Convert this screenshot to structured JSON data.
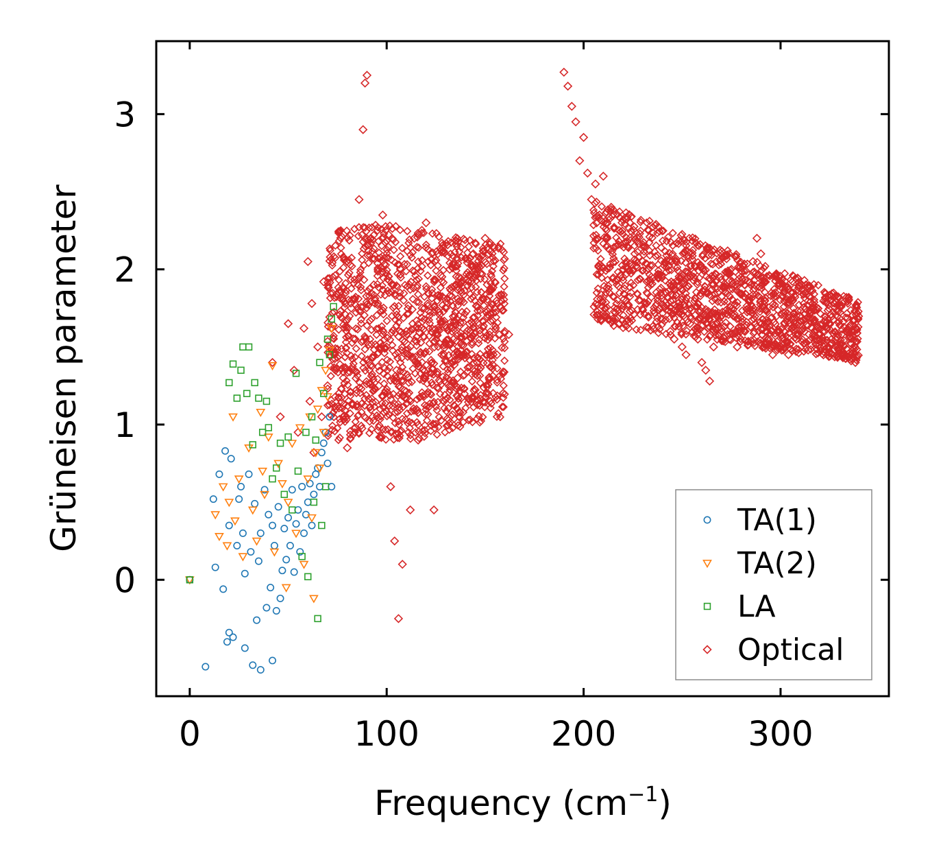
{
  "chart_data": {
    "type": "scatter",
    "title": "",
    "xlabel": "Frequency (cm",
    "xlabel_superscript": "−1",
    "xlabel_close": ")",
    "ylabel": "Grüneisen parameter",
    "xlim": [
      -17,
      355
    ],
    "ylim": [
      -0.75,
      3.47
    ],
    "x_ticks": [
      0,
      100,
      200,
      300
    ],
    "y_ticks": [
      0,
      1,
      2,
      3
    ],
    "x_tick_labels": [
      "0",
      "100",
      "200",
      "300"
    ],
    "y_tick_labels": [
      "0",
      "1",
      "2",
      "3"
    ],
    "grid": false,
    "legend_position": "lower-right",
    "series": [
      {
        "name": "TA(1)",
        "marker": "circle",
        "color": "#1f77b4",
        "x": [
          0,
          8,
          12,
          13,
          15,
          17,
          18,
          19,
          20,
          20,
          21,
          22,
          24,
          25,
          26,
          27,
          28,
          28,
          30,
          31,
          32,
          33,
          34,
          35,
          36,
          36,
          38,
          39,
          40,
          41,
          42,
          42,
          43,
          44,
          45,
          46,
          47,
          48,
          49,
          50,
          51,
          52,
          53,
          54,
          55,
          56,
          57,
          58,
          59,
          60,
          61,
          62,
          63,
          64,
          65,
          66,
          67,
          68,
          69,
          70,
          71,
          72
        ],
        "y": [
          0.0,
          -0.56,
          0.52,
          0.08,
          0.68,
          -0.06,
          0.83,
          -0.4,
          -0.34,
          0.35,
          0.78,
          -0.37,
          0.22,
          0.52,
          0.6,
          0.3,
          -0.44,
          0.04,
          0.68,
          0.18,
          -0.55,
          0.49,
          -0.26,
          0.12,
          -0.58,
          0.3,
          0.58,
          -0.18,
          0.42,
          -0.05,
          -0.52,
          0.35,
          0.22,
          -0.2,
          0.47,
          -0.12,
          0.06,
          0.33,
          0.13,
          0.4,
          0.22,
          0.58,
          0.05,
          0.36,
          0.45,
          0.18,
          0.6,
          0.3,
          0.42,
          0.5,
          0.62,
          0.35,
          0.55,
          0.68,
          0.72,
          0.6,
          0.82,
          0.88,
          0.95,
          0.75,
          1.05,
          0.6
        ]
      },
      {
        "name": "TA(2)",
        "marker": "triangle-down",
        "color": "#ff7f0e",
        "x": [
          0,
          13,
          15,
          17,
          19,
          20,
          22,
          23,
          25,
          27,
          30,
          32,
          34,
          36,
          37,
          38,
          40,
          42,
          43,
          45,
          47,
          49,
          50,
          52,
          54,
          56,
          58,
          60,
          61,
          62,
          63,
          64,
          65,
          66,
          67,
          68,
          69,
          70,
          71,
          72
        ],
        "y": [
          0.0,
          0.42,
          0.28,
          0.6,
          0.22,
          0.5,
          1.05,
          0.38,
          0.65,
          0.15,
          0.85,
          0.45,
          0.25,
          1.08,
          0.7,
          0.55,
          0.92,
          1.38,
          0.18,
          0.75,
          0.62,
          -0.05,
          0.5,
          0.88,
          0.3,
          0.98,
          0.1,
          0.65,
          1.05,
          0.4,
          -0.12,
          0.82,
          1.1,
          0.72,
          1.22,
          0.95,
          1.35,
          1.18,
          1.48,
          1.62
        ]
      },
      {
        "name": "LA",
        "marker": "square",
        "color": "#2ca02c",
        "x": [
          0,
          20,
          22,
          24,
          26,
          27,
          29,
          30,
          32,
          33,
          35,
          37,
          39,
          40,
          42,
          44,
          46,
          48,
          50,
          52,
          54,
          55,
          57,
          59,
          60,
          62,
          63,
          64,
          65,
          66,
          67,
          68,
          69,
          70,
          71,
          72,
          73
        ],
        "y": [
          0.0,
          1.27,
          1.39,
          1.17,
          1.35,
          1.5,
          1.2,
          1.5,
          0.87,
          1.27,
          1.17,
          0.95,
          1.15,
          0.98,
          0.65,
          0.72,
          0.88,
          0.55,
          0.92,
          0.45,
          1.33,
          0.7,
          0.15,
          0.95,
          0.02,
          1.05,
          0.5,
          0.9,
          -0.25,
          1.4,
          0.35,
          1.2,
          0.6,
          1.55,
          1.45,
          1.68,
          1.76
        ]
      },
      {
        "name": "Optical",
        "marker": "diamond",
        "color": "#d62728",
        "x": [
          42,
          46,
          50,
          53,
          55,
          58,
          60,
          61,
          62,
          63,
          65,
          67,
          68,
          70,
          72,
          74,
          76,
          78,
          80,
          82,
          84,
          86,
          88,
          89,
          90,
          91,
          92,
          93,
          94,
          96,
          98,
          100,
          102,
          103,
          104,
          105,
          106,
          107,
          108,
          110,
          112,
          114,
          116,
          118,
          120,
          122,
          124,
          126,
          128,
          130,
          132,
          134,
          136,
          138,
          140,
          142,
          144,
          146,
          148,
          150,
          152,
          154,
          156,
          158,
          160,
          162,
          190,
          192,
          194,
          196,
          198,
          200,
          202,
          204,
          206,
          208,
          210,
          212,
          214,
          216,
          218,
          220,
          222,
          224,
          226,
          228,
          230,
          232,
          234,
          236,
          238,
          240,
          242,
          244,
          246,
          248,
          250,
          252,
          254,
          256,
          258,
          260,
          262,
          264,
          266,
          268,
          270,
          272,
          274,
          276,
          278,
          280,
          282,
          284,
          286,
          288,
          290,
          292,
          294,
          296,
          298,
          300,
          302,
          304,
          306,
          308,
          310,
          312,
          314,
          316,
          318,
          320,
          322,
          324,
          326,
          328,
          330,
          332,
          334,
          336,
          338
        ],
        "y": [
          1.4,
          1.05,
          1.65,
          1.35,
          0.95,
          1.62,
          2.05,
          1.15,
          1.78,
          0.82,
          1.5,
          1.05,
          1.92,
          1.25,
          1.62,
          1.1,
          1.85,
          1.3,
          0.85,
          1.75,
          1.55,
          2.45,
          2.9,
          3.2,
          3.25,
          1.4,
          2.2,
          1.05,
          1.8,
          1.25,
          2.35,
          1.5,
          0.6,
          1.9,
          0.25,
          1.35,
          -0.25,
          2.0,
          0.1,
          1.6,
          0.45,
          2.2,
          0.9,
          1.75,
          2.3,
          1.2,
          0.45,
          2.1,
          1.45,
          1.75,
          2.0,
          1.55,
          1.3,
          1.85,
          1.45,
          1.65,
          2.1,
          1.4,
          1.8,
          2.2,
          1.3,
          2.15,
          1.45,
          1.75,
          1.6,
          1.58,
          3.27,
          3.18,
          3.05,
          2.95,
          2.7,
          2.85,
          2.62,
          2.45,
          2.55,
          2.35,
          2.6,
          2.2,
          2.4,
          2.05,
          2.25,
          1.95,
          2.15,
          1.85,
          2.1,
          1.8,
          2.05,
          1.78,
          1.9,
          1.72,
          1.95,
          1.68,
          1.85,
          1.6,
          1.55,
          1.75,
          1.5,
          1.45,
          1.65,
          1.95,
          1.55,
          1.4,
          1.35,
          1.28,
          1.5,
          1.85,
          1.62,
          1.9,
          1.55,
          1.7,
          1.5,
          1.95,
          1.6,
          1.75,
          2.05,
          2.2,
          2.1,
          1.8,
          1.55,
          1.45,
          1.7,
          1.5,
          1.65,
          1.45,
          1.8,
          1.55,
          1.7,
          1.6,
          1.48,
          1.62,
          1.55,
          1.58,
          1.5,
          1.45,
          1.52,
          1.55,
          1.5,
          1.45,
          1.48,
          1.52,
          1.4
        ]
      }
    ],
    "dense_regions": [
      {
        "series": "Optical",
        "x_range": [
          70,
          160
        ],
        "y_range": [
          0.9,
          2.3
        ]
      },
      {
        "series": "Optical",
        "x_range": [
          205,
          340
        ],
        "y_range": [
          1.35,
          2.2
        ]
      }
    ]
  }
}
